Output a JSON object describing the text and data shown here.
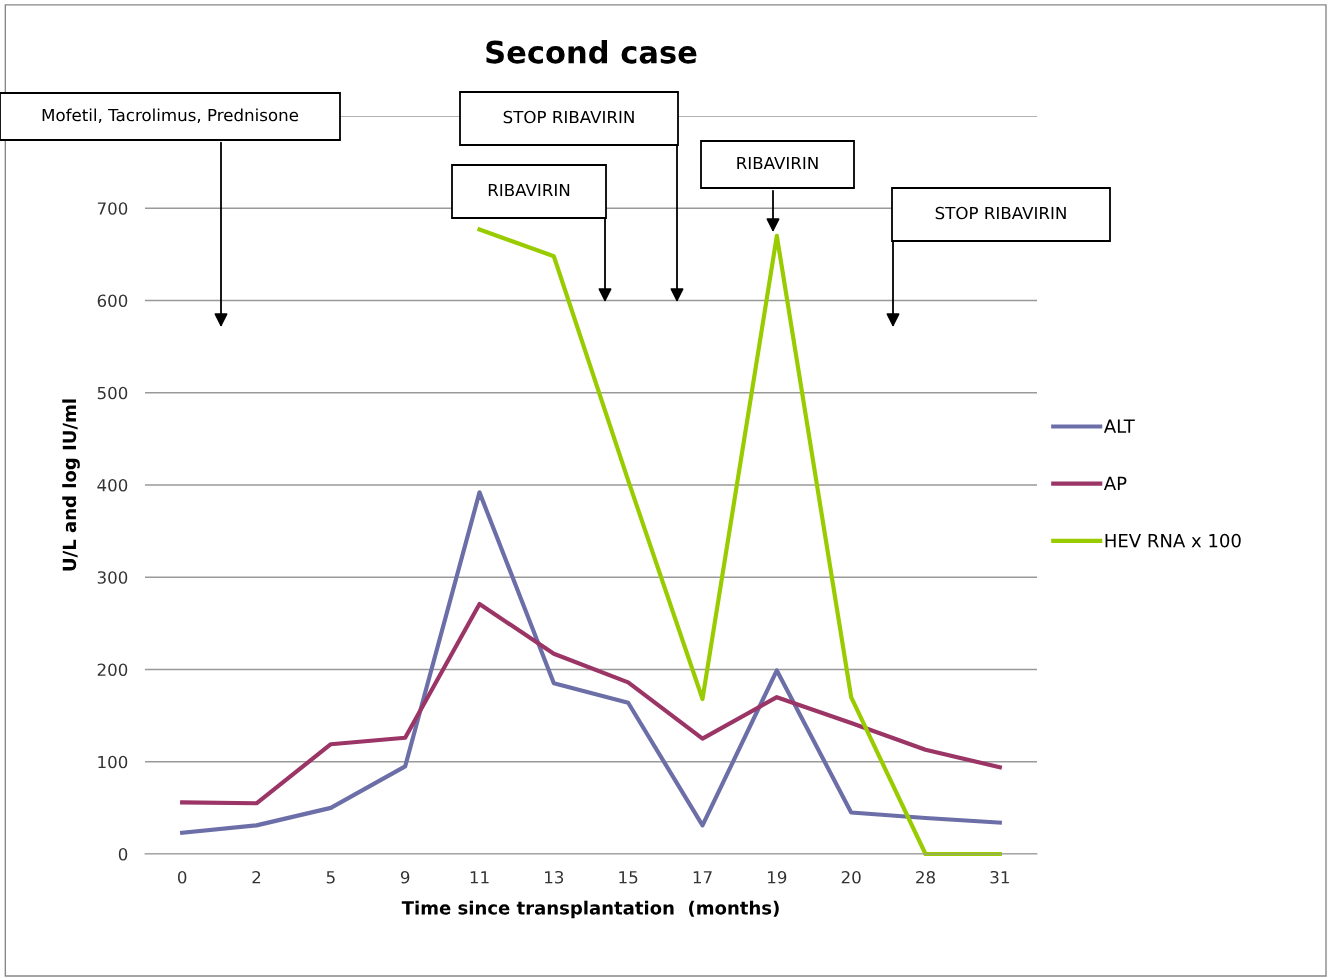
{
  "chart_data": {
    "type": "line",
    "title": "Second case",
    "xlabel": "Time since transplantation  (months)",
    "ylabel": "U/L and log IU/ml",
    "categories": [
      "0",
      "2",
      "5",
      "9",
      "11",
      "13",
      "15",
      "17",
      "19",
      "20",
      "28",
      "31"
    ],
    "series": [
      {
        "name": "ALT",
        "color": "#6c6ea8",
        "values": [
          23,
          31,
          50,
          95,
          392,
          185,
          164,
          31,
          199,
          45,
          39,
          34
        ]
      },
      {
        "name": "AP",
        "color": "#9b3566",
        "values": [
          56,
          55,
          119,
          126,
          271,
          217,
          186,
          125,
          170,
          142,
          113,
          94
        ]
      },
      {
        "name": "HEV RNA x 100",
        "color": "#99cc00",
        "values": [
          null,
          null,
          null,
          null,
          677,
          648,
          405,
          168,
          670,
          170,
          0,
          0
        ]
      }
    ],
    "ylim": [
      0,
      800
    ],
    "yticks": [
      0,
      100,
      200,
      300,
      400,
      500,
      600,
      700,
      {
        "value": 800,
        "label": null
      }
    ],
    "grid": "y",
    "legend": "right",
    "marker": "none",
    "line_style": "solid",
    "annotations": [
      "Mofetil, Tacrolimus, Prednisone",
      "STOP RIBAVIRIN",
      "RIBAVIRIN",
      "RIBAVIRIN",
      "STOP RIBAVIRIN"
    ]
  }
}
